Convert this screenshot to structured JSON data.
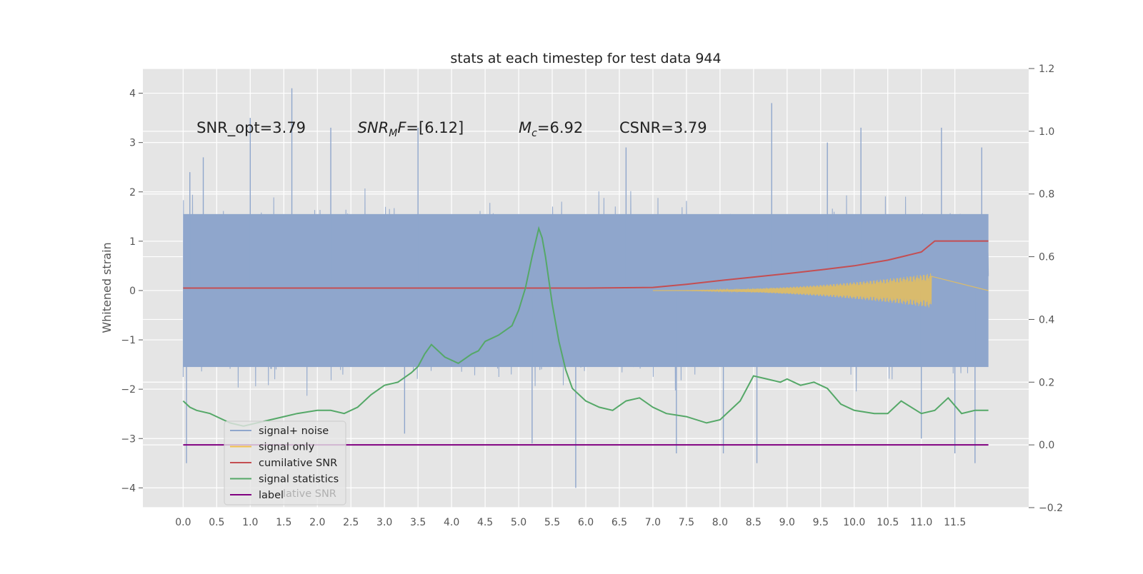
{
  "chart_data": {
    "type": "line",
    "title": "stats at each timestep for test data 944",
    "ylabel": "Whitened strain",
    "xlabel": "",
    "xlim": [
      -0.6,
      12.6
    ],
    "ylim": [
      -4.4,
      4.5
    ],
    "y2lim": [
      -0.2,
      1.2
    ],
    "grid": true,
    "x_ticks": [
      0.0,
      0.5,
      1.0,
      1.5,
      2.0,
      2.5,
      3.0,
      3.5,
      4.0,
      4.5,
      5.0,
      5.5,
      6.0,
      6.5,
      7.0,
      7.5,
      8.0,
      8.5,
      9.0,
      9.5,
      10.0,
      10.5,
      11.0,
      11.5
    ],
    "x_tick_labels": [
      "0.0",
      "0.5",
      "1.0",
      "1.5",
      "2.0",
      "2.5",
      "3.0",
      "3.5",
      "4.0",
      "4.5",
      "5.0",
      "5.5",
      "6.0",
      "6.5",
      "7.0",
      "7.5",
      "8.0",
      "8.5",
      "9.0",
      "9.5",
      "10.0",
      "10.5",
      "11.0",
      "11.5"
    ],
    "y_ticks": [
      -4,
      -3,
      -2,
      -1,
      0,
      1,
      2,
      3,
      4
    ],
    "y_tick_labels": [
      "−4",
      "−3",
      "−2",
      "−1",
      "0",
      "1",
      "2",
      "3",
      "4"
    ],
    "y2_ticks": [
      -0.2,
      0.0,
      0.2,
      0.4,
      0.6,
      0.8,
      1.0,
      1.2
    ],
    "y2_tick_labels": [
      "−0.2",
      "0.0",
      "0.2",
      "0.4",
      "0.6",
      "0.8",
      "1.0",
      "1.2"
    ],
    "annotations": [
      {
        "parts": [
          {
            "t": "SNR_opt=3.79",
            "i": false
          }
        ],
        "x": 0.2,
        "y": 3.3
      },
      {
        "parts": [
          {
            "t": "SNR",
            "i": true
          },
          {
            "t": "M",
            "i": true,
            "sub": true
          },
          {
            "t": "F",
            "i": true
          },
          {
            "t": "=[6.12]",
            "i": false
          }
        ],
        "x": 2.6,
        "y": 3.3
      },
      {
        "parts": [
          {
            "t": "M",
            "i": true
          },
          {
            "t": "c",
            "i": true,
            "sub": true
          },
          {
            "t": "=6.92",
            "i": false
          }
        ],
        "x": 5.0,
        "y": 3.3
      },
      {
        "parts": [
          {
            "t": "CSNR=3.79",
            "i": false
          }
        ],
        "x": 6.5,
        "y": 3.3
      }
    ],
    "legend": {
      "placement": "lower-left",
      "entries": [
        {
          "label": "signal+ noise",
          "color": "#8fa6cc"
        },
        {
          "label": "signal only",
          "color": "#f2c14e"
        },
        {
          "label": "cumilative SNR",
          "color": "#c44e52"
        },
        {
          "label": "signal statistics",
          "color": "#55a868"
        },
        {
          "label": "label",
          "color": "#800080"
        }
      ],
      "ghost_text": "lative SNR"
    },
    "series": [
      {
        "name": "signal+ noise",
        "axis": "left",
        "color": "#8fa6cc",
        "band": {
          "x_start": 0.0,
          "x_end": 12.0,
          "core": 1.55,
          "spikes_up": [
            [
              0.1,
              2.4
            ],
            [
              0.3,
              2.7
            ],
            [
              1.0,
              3.5
            ],
            [
              1.62,
              4.1
            ],
            [
              2.2,
              3.3
            ],
            [
              3.5,
              3.3
            ],
            [
              6.6,
              2.9
            ],
            [
              8.77,
              3.8
            ],
            [
              9.6,
              3.0
            ],
            [
              10.1,
              3.3
            ],
            [
              11.3,
              3.3
            ],
            [
              11.9,
              2.9
            ]
          ],
          "spikes_down": [
            [
              0.05,
              -3.5
            ],
            [
              3.3,
              -2.9
            ],
            [
              5.2,
              -3.1
            ],
            [
              5.85,
              -4.0
            ],
            [
              7.35,
              -3.3
            ],
            [
              8.05,
              -3.3
            ],
            [
              8.55,
              -3.5
            ],
            [
              11.0,
              -3.0
            ],
            [
              11.5,
              -3.3
            ],
            [
              11.8,
              -3.5
            ]
          ]
        }
      },
      {
        "name": "signal only",
        "axis": "left",
        "color": "#f2c14e",
        "chirp": {
          "x_start": 7.0,
          "x_end": 11.15,
          "amp_end": 0.35
        }
      },
      {
        "name": "cumilative SNR",
        "axis": "right",
        "color": "#c44e52",
        "x": [
          0.0,
          6.0,
          7.0,
          7.5,
          8.0,
          8.5,
          9.0,
          9.5,
          10.0,
          10.5,
          11.0,
          11.2,
          12.0
        ],
        "values": [
          0.5,
          0.5,
          0.502,
          0.512,
          0.524,
          0.535,
          0.546,
          0.558,
          0.571,
          0.589,
          0.615,
          0.65,
          0.65
        ]
      },
      {
        "name": "signal statistics",
        "axis": "right",
        "color": "#55a868",
        "x": [
          0.0,
          0.1,
          0.2,
          0.4,
          0.5,
          0.7,
          0.9,
          1.1,
          1.3,
          1.5,
          1.7,
          2.0,
          2.2,
          2.4,
          2.6,
          2.8,
          3.0,
          3.2,
          3.4,
          3.5,
          3.6,
          3.7,
          3.9,
          4.1,
          4.3,
          4.4,
          4.5,
          4.6,
          4.7,
          4.9,
          5.0,
          5.1,
          5.2,
          5.3,
          5.35,
          5.4,
          5.5,
          5.6,
          5.7,
          5.8,
          6.0,
          6.2,
          6.4,
          6.6,
          6.8,
          7.0,
          7.2,
          7.5,
          7.8,
          8.0,
          8.3,
          8.5,
          8.7,
          8.9,
          9.0,
          9.2,
          9.4,
          9.6,
          9.8,
          10.0,
          10.3,
          10.5,
          10.7,
          11.0,
          11.2,
          11.4,
          11.6,
          11.8,
          12.0
        ],
        "values": [
          0.14,
          0.12,
          0.11,
          0.1,
          0.09,
          0.07,
          0.06,
          0.07,
          0.08,
          0.09,
          0.1,
          0.11,
          0.11,
          0.1,
          0.12,
          0.16,
          0.19,
          0.2,
          0.23,
          0.25,
          0.29,
          0.32,
          0.28,
          0.26,
          0.29,
          0.3,
          0.33,
          0.34,
          0.35,
          0.38,
          0.43,
          0.5,
          0.6,
          0.69,
          0.66,
          0.6,
          0.45,
          0.33,
          0.24,
          0.18,
          0.14,
          0.12,
          0.11,
          0.14,
          0.15,
          0.12,
          0.1,
          0.09,
          0.07,
          0.08,
          0.14,
          0.22,
          0.21,
          0.2,
          0.21,
          0.19,
          0.2,
          0.18,
          0.13,
          0.11,
          0.1,
          0.1,
          0.14,
          0.1,
          0.11,
          0.15,
          0.1,
          0.11,
          0.11
        ]
      },
      {
        "name": "label",
        "axis": "right",
        "color": "#800080",
        "x": [
          0.0,
          12.0
        ],
        "values": [
          0.0,
          0.0
        ]
      }
    ]
  }
}
